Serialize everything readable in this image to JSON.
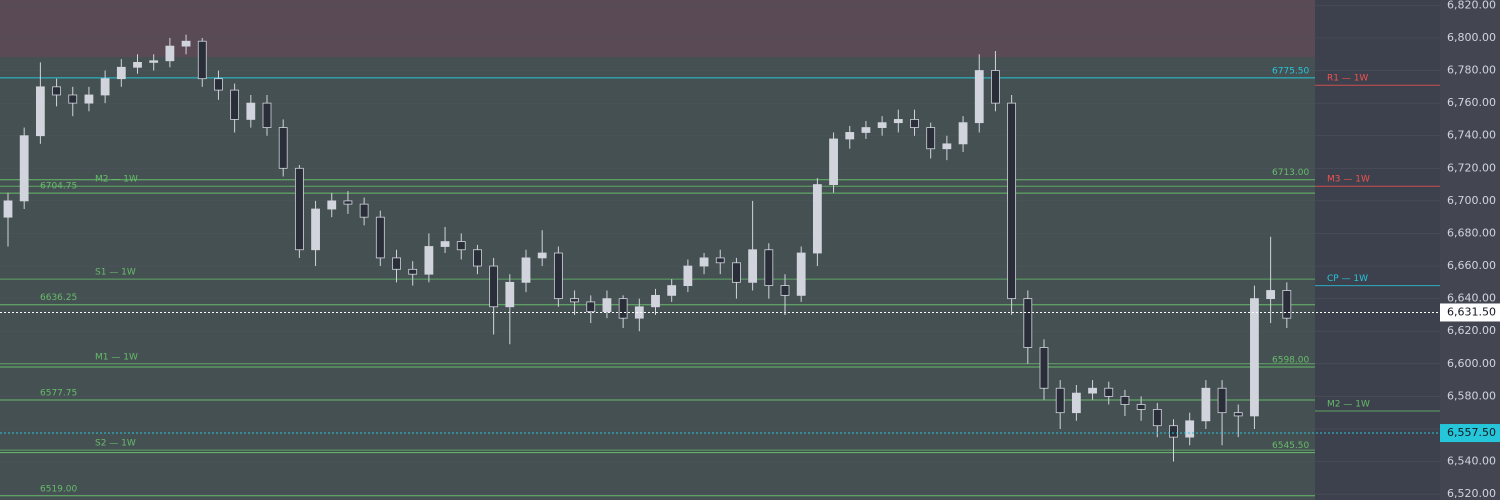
{
  "chart_data": {
    "type": "candlestick",
    "open": [
      6690,
      6700,
      6740,
      6770,
      6765,
      6760,
      6765,
      6775,
      6782,
      6785,
      6786,
      6795,
      6798,
      6775,
      6768,
      6750,
      6760,
      6745,
      6720,
      6670,
      6695,
      6700,
      6698,
      6690,
      6665,
      6658,
      6655,
      6672,
      6675,
      6670,
      6660,
      6635,
      6650,
      6665,
      6668,
      6640,
      6638,
      6632,
      6640,
      6628,
      6635,
      6642,
      6648,
      6660,
      6665,
      6662,
      6650,
      6670,
      6648,
      6642,
      6668,
      6710,
      6738,
      6742,
      6745,
      6748,
      6750,
      6745,
      6732,
      6735,
      6748,
      6780,
      6760,
      6640,
      6610,
      6585,
      6570,
      6582,
      6585,
      6580,
      6575,
      6572,
      6562,
      6555,
      6565,
      6585,
      6570,
      6568,
      6640,
      6645
    ],
    "high": [
      6705,
      6745,
      6785,
      6775,
      6770,
      6770,
      6780,
      6787,
      6790,
      6790,
      6800,
      6802,
      6800,
      6780,
      6772,
      6765,
      6765,
      6750,
      6722,
      6700,
      6705,
      6706,
      6702,
      6694,
      6670,
      6663,
      6680,
      6684,
      6680,
      6673,
      6665,
      6655,
      6670,
      6682,
      6672,
      6645,
      6642,
      6645,
      6642,
      6640,
      6646,
      6652,
      6664,
      6668,
      6670,
      6665,
      6700,
      6674,
      6655,
      6672,
      6714,
      6742,
      6746,
      6749,
      6752,
      6756,
      6756,
      6748,
      6740,
      6752,
      6790,
      6792,
      6765,
      6645,
      6615,
      6590,
      6587,
      6590,
      6589,
      6584,
      6580,
      6576,
      6566,
      6570,
      6590,
      6590,
      6575,
      6648,
      6678,
      6650
    ],
    "low": [
      6672,
      6695,
      6735,
      6758,
      6752,
      6755,
      6760,
      6770,
      6778,
      6780,
      6782,
      6790,
      6770,
      6762,
      6742,
      6745,
      6740,
      6715,
      6665,
      6660,
      6690,
      6692,
      6685,
      6660,
      6650,
      6648,
      6650,
      6668,
      6664,
      6655,
      6618,
      6612,
      6644,
      6660,
      6635,
      6630,
      6625,
      6628,
      6622,
      6620,
      6630,
      6638,
      6644,
      6655,
      6655,
      6640,
      6645,
      6640,
      6630,
      6638,
      6660,
      6705,
      6732,
      6738,
      6740,
      6742,
      6740,
      6726,
      6725,
      6730,
      6742,
      6755,
      6630,
      6600,
      6578,
      6560,
      6565,
      6578,
      6575,
      6568,
      6565,
      6555,
      6540,
      6550,
      6560,
      6550,
      6555,
      6560,
      6625,
      6622
    ],
    "close": [
      6700,
      6740,
      6770,
      6765,
      6760,
      6765,
      6775,
      6782,
      6785,
      6786,
      6795,
      6798,
      6775,
      6768,
      6750,
      6760,
      6745,
      6720,
      6670,
      6695,
      6700,
      6698,
      6690,
      6665,
      6658,
      6655,
      6672,
      6675,
      6670,
      6660,
      6635,
      6650,
      6665,
      6668,
      6640,
      6638,
      6632,
      6640,
      6628,
      6635,
      6642,
      6648,
      6660,
      6665,
      6662,
      6650,
      6670,
      6648,
      6642,
      6668,
      6710,
      6738,
      6742,
      6745,
      6748,
      6750,
      6745,
      6732,
      6735,
      6748,
      6780,
      6760,
      6640,
      6610,
      6585,
      6570,
      6582,
      6585,
      6580,
      6575,
      6572,
      6562,
      6555,
      6565,
      6585,
      6570,
      6568,
      6640,
      6645,
      6628
    ],
    "up_color": "#d1d4dc",
    "down_color": "#2a2e39",
    "ylim": [
      6516.4,
      6823.3
    ],
    "yticks": [
      {
        "value": 6520,
        "label": "6,520.00"
      },
      {
        "value": 6540,
        "label": "6,540.00"
      },
      {
        "value": 6560,
        "label": "6,560.00"
      },
      {
        "value": 6580,
        "label": "6,580.00"
      },
      {
        "value": 6600,
        "label": "6,600.00"
      },
      {
        "value": 6620,
        "label": "6,620.00"
      },
      {
        "value": 6640,
        "label": "6,640.00"
      },
      {
        "value": 6660,
        "label": "6,660.00"
      },
      {
        "value": 6680,
        "label": "6,680.00"
      },
      {
        "value": 6700,
        "label": "6,700.00"
      },
      {
        "value": 6720,
        "label": "6,720.00"
      },
      {
        "value": 6740,
        "label": "6,740.00"
      },
      {
        "value": 6760,
        "label": "6,760.00"
      },
      {
        "value": 6780,
        "label": "6,780.00"
      },
      {
        "value": 6800,
        "label": "6,800.00"
      },
      {
        "value": 6820,
        "label": "6,820.00"
      }
    ],
    "levels": [
      {
        "value": 6775.5,
        "label": "6775.50",
        "color": "#26c6da",
        "side": "right"
      },
      {
        "value": 6713,
        "label": "6713.00",
        "color": "#66bb6a",
        "side": "right"
      },
      {
        "value": 6704.75,
        "label": "6704.75",
        "color": "#66bb6a",
        "side": "left"
      },
      {
        "value": 6636.25,
        "label": "6636.25",
        "color": "#66bb6a",
        "side": "left"
      },
      {
        "value": 6598,
        "label": "6598.00",
        "color": "#66bb6a",
        "side": "right"
      },
      {
        "value": 6577.75,
        "label": "6577.75",
        "color": "#66bb6a",
        "side": "left"
      },
      {
        "value": 6545.5,
        "label": "6545.50",
        "color": "#66bb6a",
        "side": "right"
      },
      {
        "value": 6519,
        "label": "6519.00",
        "color": "#66bb6a",
        "side": "left"
      }
    ],
    "pivots": [
      {
        "name": "M2 — 1W",
        "value": 6709,
        "color": "#66bb6a",
        "side": "left"
      },
      {
        "name": "S1 — 1W",
        "value": 6652,
        "color": "#66bb6a",
        "side": "left"
      },
      {
        "name": "M1 — 1W",
        "value": 6600,
        "color": "#66bb6a",
        "side": "left"
      },
      {
        "name": "S2 — 1W",
        "value": 6547,
        "color": "#66bb6a",
        "side": "left"
      },
      {
        "name": "R1 — 1W",
        "value": 6771,
        "color": "#ef5350",
        "side": "right"
      },
      {
        "name": "M3 — 1W",
        "value": 6709,
        "color": "#ef5350",
        "side": "right"
      },
      {
        "name": "CP — 1W",
        "value": 6648,
        "color": "#26c6da",
        "side": "right"
      },
      {
        "name": "M2 — 1W",
        "value": 6571,
        "color": "#66bb6a",
        "side": "right"
      }
    ],
    "price_markers": [
      {
        "value": 6631.5,
        "label": "6,631.50",
        "color": "#ffffff",
        "text_color": "#131722"
      },
      {
        "value": 6557.5,
        "label": "6,557.50",
        "color": "#26c6da",
        "text_color": "#131722"
      }
    ]
  }
}
